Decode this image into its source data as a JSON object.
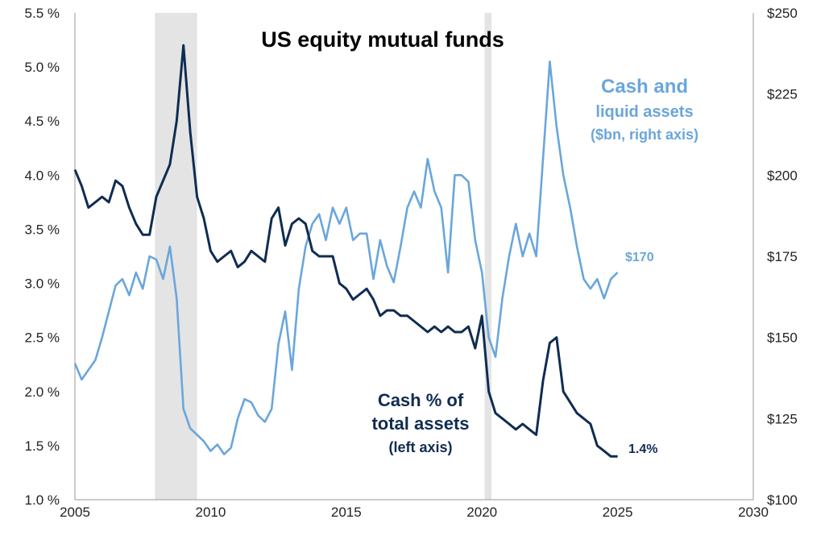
{
  "chart_data": {
    "type": "line",
    "title": "US equity mutual funds",
    "x_axis": {
      "min": 2005,
      "max": 2030,
      "ticks": [
        "2005",
        "2010",
        "2015",
        "2020",
        "2025",
        "2030"
      ]
    },
    "y_left": {
      "min": 1.0,
      "max": 5.5,
      "ticks": [
        "1.0 %",
        "1.5 %",
        "2.0 %",
        "2.5 %",
        "3.0 %",
        "3.5 %",
        "4.0 %",
        "4.5 %",
        "5.0 %",
        "5.5 %"
      ]
    },
    "y_right": {
      "min": 100,
      "max": 250,
      "ticks": [
        "$100",
        "$125",
        "$150",
        "$175",
        "$200",
        "$225",
        "$250"
      ]
    },
    "recessions": [
      {
        "start": 2007.95,
        "end": 2009.5
      },
      {
        "start": 2020.1,
        "end": 2020.35
      }
    ],
    "series": [
      {
        "name": "Cash and liquid assets",
        "label_lines": [
          "Cash and",
          "liquid assets",
          "($bn, right axis)"
        ],
        "axis": "right",
        "color": "#6aa6db",
        "end_label": "$170",
        "x": [
          2005.0,
          2005.25,
          2005.5,
          2005.75,
          2006.0,
          2006.25,
          2006.5,
          2006.75,
          2007.0,
          2007.25,
          2007.5,
          2007.75,
          2008.0,
          2008.25,
          2008.5,
          2008.75,
          2009.0,
          2009.25,
          2009.5,
          2009.75,
          2010.0,
          2010.25,
          2010.5,
          2010.75,
          2011.0,
          2011.25,
          2011.5,
          2011.75,
          2012.0,
          2012.25,
          2012.5,
          2012.75,
          2013.0,
          2013.25,
          2013.5,
          2013.75,
          2014.0,
          2014.25,
          2014.5,
          2014.75,
          2015.0,
          2015.25,
          2015.5,
          2015.75,
          2016.0,
          2016.25,
          2016.5,
          2016.75,
          2017.0,
          2017.25,
          2017.5,
          2017.75,
          2018.0,
          2018.25,
          2018.5,
          2018.75,
          2019.0,
          2019.25,
          2019.5,
          2019.75,
          2020.0,
          2020.25,
          2020.5,
          2020.75,
          2021.0,
          2021.25,
          2021.5,
          2021.75,
          2022.0,
          2022.25,
          2022.5,
          2022.75,
          2023.0,
          2023.25,
          2023.5,
          2023.75,
          2024.0,
          2024.25,
          2024.5,
          2024.75,
          2025.0
        ],
        "values": [
          142,
          137,
          140,
          143,
          150,
          158,
          166,
          168,
          163,
          170,
          165,
          175,
          174,
          168,
          178,
          162,
          128,
          122,
          120,
          118,
          115,
          117,
          114,
          116,
          125,
          131,
          130,
          126,
          124,
          128,
          148,
          158,
          140,
          165,
          178,
          185,
          188,
          180,
          190,
          185,
          190,
          180,
          182,
          182,
          168,
          180,
          172,
          167,
          178,
          190,
          195,
          190,
          205,
          195,
          190,
          170,
          200,
          200,
          198,
          180,
          170,
          150,
          144,
          162,
          175,
          185,
          175,
          182,
          175,
          205,
          235,
          215,
          200,
          190,
          178,
          168,
          165,
          168,
          162,
          168,
          170
        ]
      },
      {
        "name": "Cash % of total assets",
        "label_lines": [
          "Cash % of",
          "total assets",
          "(left axis)"
        ],
        "axis": "left",
        "color": "#0f2c52",
        "end_label": "1.4%",
        "x": [
          2005.0,
          2005.25,
          2005.5,
          2005.75,
          2006.0,
          2006.25,
          2006.5,
          2006.75,
          2007.0,
          2007.25,
          2007.5,
          2007.75,
          2008.0,
          2008.25,
          2008.5,
          2008.75,
          2009.0,
          2009.25,
          2009.5,
          2009.75,
          2010.0,
          2010.25,
          2010.5,
          2010.75,
          2011.0,
          2011.25,
          2011.5,
          2011.75,
          2012.0,
          2012.25,
          2012.5,
          2012.75,
          2013.0,
          2013.25,
          2013.5,
          2013.75,
          2014.0,
          2014.25,
          2014.5,
          2014.75,
          2015.0,
          2015.25,
          2015.5,
          2015.75,
          2016.0,
          2016.25,
          2016.5,
          2016.75,
          2017.0,
          2017.25,
          2017.5,
          2017.75,
          2018.0,
          2018.25,
          2018.5,
          2018.75,
          2019.0,
          2019.25,
          2019.5,
          2019.75,
          2020.0,
          2020.25,
          2020.5,
          2020.75,
          2021.0,
          2021.25,
          2021.5,
          2021.75,
          2022.0,
          2022.25,
          2022.5,
          2022.75,
          2023.0,
          2023.25,
          2023.5,
          2023.75,
          2024.0,
          2024.25,
          2024.5,
          2024.75,
          2025.0
        ],
        "values": [
          4.05,
          3.9,
          3.7,
          3.75,
          3.8,
          3.75,
          3.95,
          3.9,
          3.7,
          3.55,
          3.45,
          3.45,
          3.8,
          3.95,
          4.1,
          4.5,
          5.2,
          4.4,
          3.8,
          3.6,
          3.3,
          3.2,
          3.25,
          3.3,
          3.15,
          3.2,
          3.3,
          3.25,
          3.2,
          3.6,
          3.7,
          3.35,
          3.55,
          3.6,
          3.55,
          3.3,
          3.25,
          3.25,
          3.25,
          3.0,
          2.95,
          2.85,
          2.9,
          2.95,
          2.85,
          2.7,
          2.75,
          2.75,
          2.7,
          2.7,
          2.65,
          2.6,
          2.55,
          2.6,
          2.55,
          2.6,
          2.55,
          2.55,
          2.6,
          2.4,
          2.7,
          2.0,
          1.8,
          1.75,
          1.7,
          1.65,
          1.7,
          1.65,
          1.6,
          2.1,
          2.45,
          2.5,
          2.0,
          1.9,
          1.8,
          1.75,
          1.7,
          1.5,
          1.45,
          1.4,
          1.4
        ]
      }
    ]
  }
}
